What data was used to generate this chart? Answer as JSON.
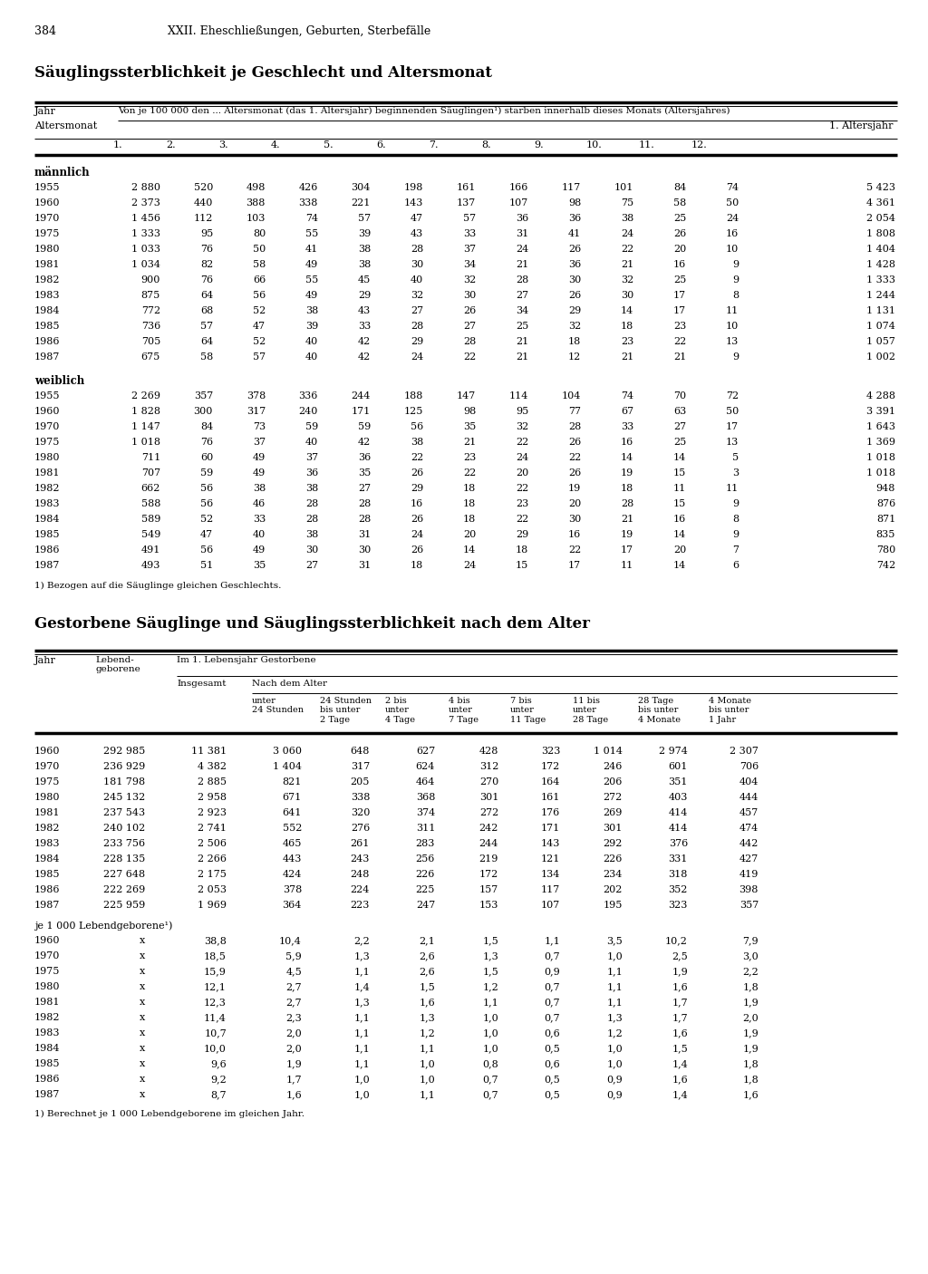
{
  "page_num": "384",
  "page_header": "XXII. Eheschließungen, Geburten, Sterbefälle",
  "title1": "Säuglingssterblichkeit je Geschlecht und Altersmonat",
  "title2": "Gestorbene Säuglinge und Säuglingssterblichkeit nach dem Alter",
  "table1_col_header_row1": "Von je 100 000 den ... Altersmonat (das 1. Altersjahr) beginnenden Säuglingen¹) starben innerhalb dieses Monats (Altersjahres)",
  "table1_subhead1": "Altersmonat",
  "table1_subhead2": "1. Altersjahr",
  "table1_months": [
    "1.",
    "2.",
    "3.",
    "4.",
    "5.",
    "6.",
    "7.",
    "8.",
    "9.",
    "10.",
    "11.",
    "12."
  ],
  "table1_section1_label": "männlich",
  "table1_maennlich": [
    [
      "1955",
      "2 880",
      "520",
      "498",
      "426",
      "304",
      "198",
      "161",
      "166",
      "117",
      "101",
      "84",
      "74",
      "5 423"
    ],
    [
      "1960",
      "2 373",
      "440",
      "388",
      "338",
      "221",
      "143",
      "137",
      "107",
      "98",
      "75",
      "58",
      "50",
      "4 361"
    ],
    [
      "1970",
      "1 456",
      "112",
      "103",
      "74",
      "57",
      "47",
      "57",
      "36",
      "36",
      "38",
      "25",
      "24",
      "2 054"
    ],
    [
      "1975",
      "1 333",
      "95",
      "80",
      "55",
      "39",
      "43",
      "33",
      "31",
      "41",
      "24",
      "26",
      "16",
      "1 808"
    ],
    [
      "1980",
      "1 033",
      "76",
      "50",
      "41",
      "38",
      "28",
      "37",
      "24",
      "26",
      "22",
      "20",
      "10",
      "1 404"
    ],
    [
      "1981",
      "1 034",
      "82",
      "58",
      "49",
      "38",
      "30",
      "34",
      "21",
      "36",
      "21",
      "16",
      "9",
      "1 428"
    ],
    [
      "1982",
      "900",
      "76",
      "66",
      "55",
      "45",
      "40",
      "32",
      "28",
      "30",
      "32",
      "25",
      "9",
      "1 333"
    ],
    [
      "1983",
      "875",
      "64",
      "56",
      "49",
      "29",
      "32",
      "30",
      "27",
      "26",
      "30",
      "17",
      "8",
      "1 244"
    ],
    [
      "1984",
      "772",
      "68",
      "52",
      "38",
      "43",
      "27",
      "26",
      "34",
      "29",
      "14",
      "17",
      "11",
      "1 131"
    ],
    [
      "1985",
      "736",
      "57",
      "47",
      "39",
      "33",
      "28",
      "27",
      "25",
      "32",
      "18",
      "23",
      "10",
      "1 074"
    ],
    [
      "1986",
      "705",
      "64",
      "52",
      "40",
      "42",
      "29",
      "28",
      "21",
      "18",
      "23",
      "22",
      "13",
      "1 057"
    ],
    [
      "1987",
      "675",
      "58",
      "57",
      "40",
      "42",
      "24",
      "22",
      "21",
      "12",
      "21",
      "21",
      "9",
      "1 002"
    ]
  ],
  "table1_section2_label": "weiblich",
  "table1_weiblich": [
    [
      "1955",
      "2 269",
      "357",
      "378",
      "336",
      "244",
      "188",
      "147",
      "114",
      "104",
      "74",
      "70",
      "72",
      "4 288"
    ],
    [
      "1960",
      "1 828",
      "300",
      "317",
      "240",
      "171",
      "125",
      "98",
      "95",
      "77",
      "67",
      "63",
      "50",
      "3 391"
    ],
    [
      "1970",
      "1 147",
      "84",
      "73",
      "59",
      "59",
      "56",
      "35",
      "32",
      "28",
      "33",
      "27",
      "17",
      "1 643"
    ],
    [
      "1975",
      "1 018",
      "76",
      "37",
      "40",
      "42",
      "38",
      "21",
      "22",
      "26",
      "16",
      "25",
      "13",
      "1 369"
    ],
    [
      "1980",
      "711",
      "60",
      "49",
      "37",
      "36",
      "22",
      "23",
      "24",
      "22",
      "14",
      "14",
      "5",
      "1 018"
    ],
    [
      "1981",
      "707",
      "59",
      "49",
      "36",
      "35",
      "26",
      "22",
      "20",
      "26",
      "19",
      "15",
      "3",
      "1 018"
    ],
    [
      "1982",
      "662",
      "56",
      "38",
      "38",
      "27",
      "29",
      "18",
      "22",
      "19",
      "18",
      "11",
      "11",
      "948"
    ],
    [
      "1983",
      "588",
      "56",
      "46",
      "28",
      "28",
      "16",
      "18",
      "23",
      "20",
      "28",
      "15",
      "9",
      "876"
    ],
    [
      "1984",
      "589",
      "52",
      "33",
      "28",
      "28",
      "26",
      "18",
      "22",
      "30",
      "21",
      "16",
      "8",
      "871"
    ],
    [
      "1985",
      "549",
      "47",
      "40",
      "38",
      "31",
      "24",
      "20",
      "29",
      "16",
      "19",
      "14",
      "9",
      "835"
    ],
    [
      "1986",
      "491",
      "56",
      "49",
      "30",
      "30",
      "26",
      "14",
      "18",
      "22",
      "17",
      "20",
      "7",
      "780"
    ],
    [
      "1987",
      "493",
      "51",
      "35",
      "27",
      "31",
      "18",
      "24",
      "15",
      "17",
      "11",
      "14",
      "6",
      "742"
    ]
  ],
  "table1_footnote": "1) Bezogen auf die Säuglinge gleichen Geschlechts.",
  "table2_data": [
    [
      "1960",
      "292 985",
      "11 381",
      "3 060",
      "648",
      "627",
      "428",
      "323",
      "1 014",
      "2 974",
      "2 307"
    ],
    [
      "1970",
      "236 929",
      "4 382",
      "1 404",
      "317",
      "624",
      "312",
      "172",
      "246",
      "601",
      "706"
    ],
    [
      "1975",
      "181 798",
      "2 885",
      "821",
      "205",
      "464",
      "270",
      "164",
      "206",
      "351",
      "404"
    ],
    [
      "1980",
      "245 132",
      "2 958",
      "671",
      "338",
      "368",
      "301",
      "161",
      "272",
      "403",
      "444"
    ],
    [
      "1981",
      "237 543",
      "2 923",
      "641",
      "320",
      "374",
      "272",
      "176",
      "269",
      "414",
      "457"
    ],
    [
      "1982",
      "240 102",
      "2 741",
      "552",
      "276",
      "311",
      "242",
      "171",
      "301",
      "414",
      "474"
    ],
    [
      "1983",
      "233 756",
      "2 506",
      "465",
      "261",
      "283",
      "244",
      "143",
      "292",
      "376",
      "442"
    ],
    [
      "1984",
      "228 135",
      "2 266",
      "443",
      "243",
      "256",
      "219",
      "121",
      "226",
      "331",
      "427"
    ],
    [
      "1985",
      "227 648",
      "2 175",
      "424",
      "248",
      "226",
      "172",
      "134",
      "234",
      "318",
      "419"
    ],
    [
      "1986",
      "222 269",
      "2 053",
      "378",
      "224",
      "225",
      "157",
      "117",
      "202",
      "352",
      "398"
    ],
    [
      "1987",
      "225 959",
      "1 969",
      "364",
      "223",
      "247",
      "153",
      "107",
      "195",
      "323",
      "357"
    ]
  ],
  "table2_section2_label": "je 1 000 Lebendgeborene¹)",
  "table2_data2": [
    [
      "1960",
      "x",
      "38,8",
      "10,4",
      "2,2",
      "2,1",
      "1,5",
      "1,1",
      "3,5",
      "10,2",
      "7,9"
    ],
    [
      "1970",
      "x",
      "18,5",
      "5,9",
      "1,3",
      "2,6",
      "1,3",
      "0,7",
      "1,0",
      "2,5",
      "3,0"
    ],
    [
      "1975",
      "x",
      "15,9",
      "4,5",
      "1,1",
      "2,6",
      "1,5",
      "0,9",
      "1,1",
      "1,9",
      "2,2"
    ],
    [
      "1980",
      "x",
      "12,1",
      "2,7",
      "1,4",
      "1,5",
      "1,2",
      "0,7",
      "1,1",
      "1,6",
      "1,8"
    ],
    [
      "1981",
      "x",
      "12,3",
      "2,7",
      "1,3",
      "1,6",
      "1,1",
      "0,7",
      "1,1",
      "1,7",
      "1,9"
    ],
    [
      "1982",
      "x",
      "11,4",
      "2,3",
      "1,1",
      "1,3",
      "1,0",
      "0,7",
      "1,3",
      "1,7",
      "2,0"
    ],
    [
      "1983",
      "x",
      "10,7",
      "2,0",
      "1,1",
      "1,2",
      "1,0",
      "0,6",
      "1,2",
      "1,6",
      "1,9"
    ],
    [
      "1984",
      "x",
      "10,0",
      "2,0",
      "1,1",
      "1,1",
      "1,0",
      "0,5",
      "1,0",
      "1,5",
      "1,9"
    ],
    [
      "1985",
      "x",
      "9,6",
      "1,9",
      "1,1",
      "1,0",
      "0,8",
      "0,6",
      "1,0",
      "1,4",
      "1,8"
    ],
    [
      "1986",
      "x",
      "9,2",
      "1,7",
      "1,0",
      "1,0",
      "0,7",
      "0,5",
      "0,9",
      "1,6",
      "1,8"
    ],
    [
      "1987",
      "x",
      "8,7",
      "1,6",
      "1,0",
      "1,1",
      "0,7",
      "0,5",
      "0,9",
      "1,4",
      "1,6"
    ]
  ],
  "table2_footnote": "1) Berechnet je 1 000 Lebendgeborene im gleichen Jahr."
}
